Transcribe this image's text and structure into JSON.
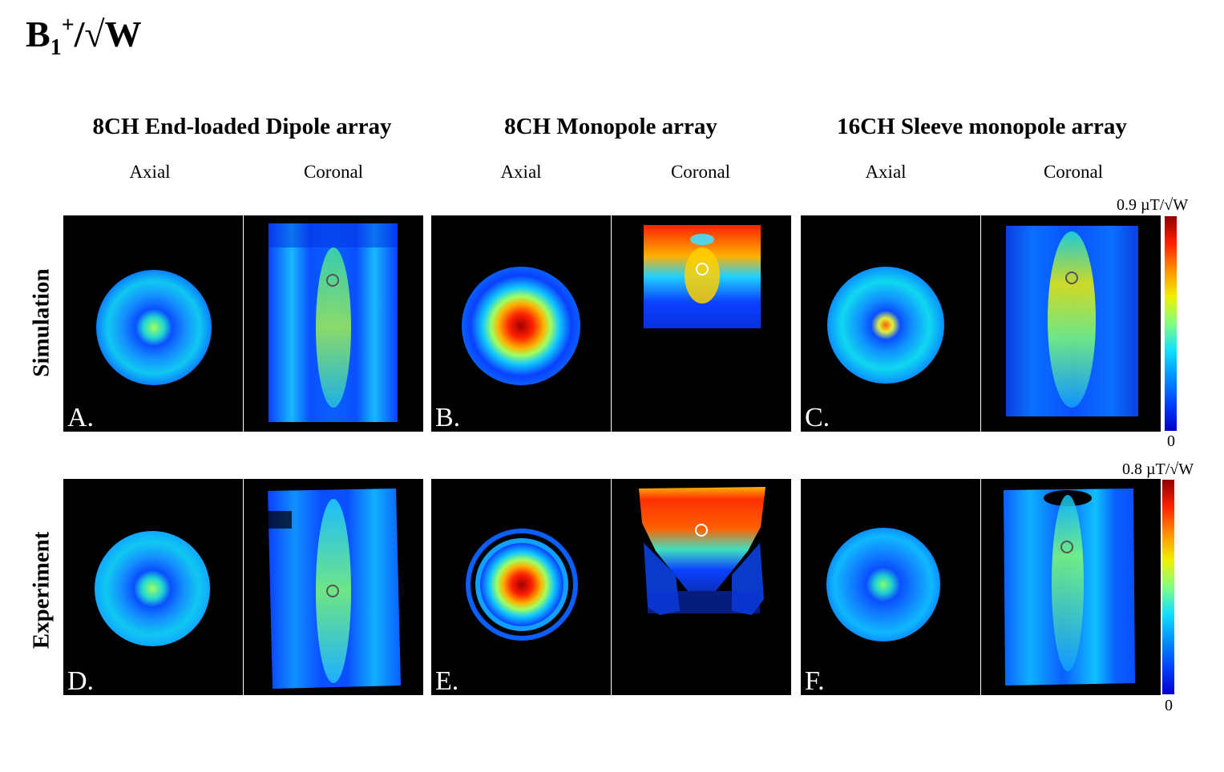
{
  "figure_title": {
    "base": "B",
    "sub": "1",
    "sup": "+",
    "rest": "/√W"
  },
  "groups": [
    {
      "title": "8CH End-loaded Dipole array",
      "axial": "Axial",
      "coronal": "Coronal"
    },
    {
      "title": "8CH Monopole array",
      "axial": "Axial",
      "coronal": "Coronal"
    },
    {
      "title": "16CH Sleeve monopole array",
      "axial": "Axial",
      "coronal": "Coronal"
    }
  ],
  "rows": [
    {
      "label": "Simulation",
      "colorbar_max": "0.9 µT/√W",
      "colorbar_min": "0"
    },
    {
      "label": "Experiment",
      "colorbar_max": "0.8 µT/√W",
      "colorbar_min": "0"
    }
  ],
  "panel_labels": [
    "A.",
    "B.",
    "C.",
    "D.",
    "E.",
    "F."
  ],
  "colormap": [
    "#00007f",
    "#0000ff",
    "#007fff",
    "#00ffff",
    "#7fff7f",
    "#ffff00",
    "#ff7f00",
    "#ff0000",
    "#7f0000"
  ],
  "background_color": "#000000"
}
